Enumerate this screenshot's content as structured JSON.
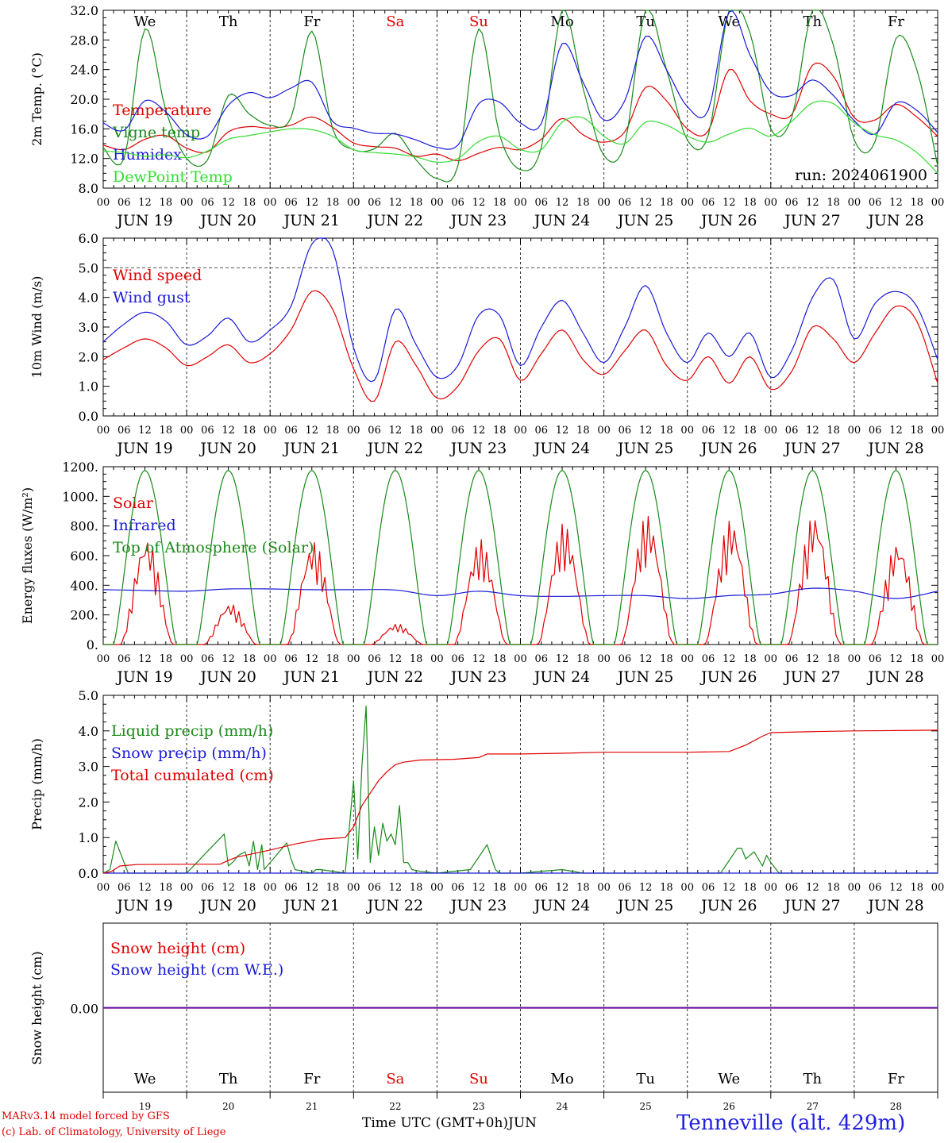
{
  "days": [
    "19",
    "20",
    "21",
    "22",
    "23",
    "24",
    "25",
    "26",
    "27",
    "28"
  ],
  "day_labels": [
    "JUN 19",
    "JUN 20",
    "JUN 21",
    "JUN 22",
    "JUN 23",
    "JUN 24",
    "JUN 25",
    "JUN 26",
    "JUN 27",
    "JUN 28"
  ],
  "weekdays": [
    {
      "label": "We",
      "color": "#000000"
    },
    {
      "label": "Th",
      "color": "#000000"
    },
    {
      "label": "Fr",
      "color": "#000000"
    },
    {
      "label": "Sa",
      "color": "#e00000"
    },
    {
      "label": "Su",
      "color": "#e00000"
    },
    {
      "label": "Mo",
      "color": "#000000"
    },
    {
      "label": "Tu",
      "color": "#000000"
    },
    {
      "label": "We",
      "color": "#000000"
    },
    {
      "label": "Th",
      "color": "#000000"
    },
    {
      "label": "Fr",
      "color": "#000000"
    }
  ],
  "hour_ticks": [
    "00",
    "06",
    "12",
    "18"
  ],
  "colors": {
    "red": "#e00000",
    "green": "#1a8a1a",
    "lightgreen": "#33dd33",
    "blue": "#1a1ad8",
    "purple": "#7a1a9a"
  },
  "footer": {
    "credit1": "MARv3.14 model forced by GFS",
    "credit2": "(c) Lab. of Climatology, University of Liege",
    "xtitle": "Time UTC (GMT+0h)JUN",
    "station": "Tenneville (alt. 429m)"
  },
  "chart_data": [
    {
      "type": "line",
      "ylabel": "2m Temp. (°C)",
      "ylim": [
        8,
        32
      ],
      "yticks": [
        "8.0",
        "12.0",
        "16.0",
        "20.0",
        "24.0",
        "28.0",
        "32.0"
      ],
      "annotation": "run: 2024061900",
      "series": [
        {
          "name": "Temperature",
          "color": "#e00000",
          "x": [
            0,
            0.25,
            0.5,
            0.75,
            1,
            1.25,
            1.5,
            1.75,
            2,
            2.25,
            2.5,
            2.75,
            3,
            3.25,
            3.5,
            3.75,
            4,
            4.25,
            4.5,
            4.75,
            5,
            5.25,
            5.5,
            5.75,
            6,
            6.25,
            6.5,
            6.75,
            7,
            7.25,
            7.5,
            7.75,
            8,
            8.25,
            8.5,
            8.75,
            9,
            9.25,
            9.5,
            9.75,
            10
          ],
          "y": [
            13.8,
            13.2,
            14.6,
            15.1,
            13.4,
            12.9,
            15.6,
            16.3,
            16.1,
            16.5,
            17.6,
            16.2,
            14.1,
            13.6,
            13.4,
            12.3,
            12.6,
            11.7,
            12.7,
            13.5,
            13.2,
            14.6,
            17.4,
            15.2,
            14.2,
            15.6,
            21.6,
            19.8,
            16.0,
            15.7,
            24.0,
            19.8,
            18.0,
            17.9,
            24.6,
            23.1,
            17.5,
            17.2,
            19.3,
            17.6,
            15.0
          ]
        },
        {
          "name": "Vigne temp",
          "color": "#1a8a1a",
          "x": [
            0,
            0.25,
            0.5,
            0.75,
            1,
            1.25,
            1.5,
            1.75,
            2,
            2.25,
            2.5,
            2.75,
            3,
            3.25,
            3.5,
            3.75,
            4,
            4.25,
            4.5,
            4.75,
            5,
            5.25,
            5.5,
            5.75,
            6,
            6.25,
            6.5,
            6.75,
            7,
            7.25,
            7.5,
            7.75,
            8,
            8.25,
            8.5,
            8.75,
            9,
            9.25,
            9.5,
            9.75,
            10
          ],
          "y": [
            13.5,
            12.0,
            29.5,
            18.5,
            12.0,
            11.8,
            20.5,
            18.0,
            16.5,
            17.5,
            29.2,
            16.0,
            13.2,
            13.3,
            15.4,
            11.8,
            9.3,
            11.0,
            29.5,
            15.2,
            10.5,
            13.5,
            32.0,
            21.5,
            12.4,
            14.0,
            32.0,
            24.0,
            14.5,
            15.1,
            32.0,
            29.0,
            16.0,
            17.5,
            32.0,
            27.3,
            14.5,
            14.3,
            28.2,
            24.0,
            11.0
          ]
        },
        {
          "name": "Humidex",
          "color": "#1a1ad8",
          "x": [
            0,
            0.25,
            0.5,
            0.75,
            1,
            1.25,
            1.5,
            1.75,
            2,
            2.25,
            2.5,
            2.75,
            3,
            3.25,
            3.5,
            3.75,
            4,
            4.25,
            4.5,
            4.75,
            5,
            5.25,
            5.5,
            5.75,
            6,
            6.25,
            6.5,
            6.75,
            7,
            7.25,
            7.5,
            7.75,
            8,
            8.25,
            8.5,
            8.75,
            9,
            9.25,
            9.5,
            9.75,
            10
          ],
          "y": [
            16.8,
            15.8,
            19.8,
            18.3,
            15.2,
            15.0,
            19.2,
            20.9,
            20.2,
            21.5,
            22.3,
            17.0,
            16.1,
            15.4,
            15.3,
            14.5,
            13.5,
            13.8,
            19.4,
            19.6,
            16.8,
            16.7,
            27.5,
            22.3,
            17.2,
            19.8,
            28.5,
            24.0,
            19.0,
            18.5,
            31.8,
            26.0,
            21.0,
            20.5,
            22.6,
            20.5,
            17.1,
            15.3,
            19.5,
            18.5,
            15.5
          ]
        },
        {
          "name": "DewPoint Temp",
          "color": "#33dd33",
          "x": [
            0,
            0.25,
            0.5,
            0.75,
            1,
            1.25,
            1.5,
            1.75,
            2,
            2.25,
            2.5,
            2.75,
            3,
            3.25,
            3.5,
            3.75,
            4,
            4.25,
            4.5,
            4.75,
            5,
            5.25,
            5.5,
            5.75,
            6,
            6.25,
            6.5,
            6.75,
            7,
            7.25,
            7.5,
            7.75,
            8,
            8.25,
            8.5,
            8.75,
            9,
            9.25,
            9.5,
            9.75,
            10
          ],
          "y": [
            13.0,
            12.8,
            12.3,
            12.5,
            12.1,
            13.0,
            14.6,
            15.1,
            15.6,
            16.0,
            15.9,
            15.0,
            13.2,
            12.8,
            12.6,
            12.2,
            11.5,
            12.0,
            14.3,
            15.0,
            13.2,
            13.2,
            16.9,
            17.5,
            15.0,
            14.0,
            16.9,
            16.5,
            15.0,
            14.2,
            15.3,
            16.1,
            15.0,
            17.0,
            19.5,
            19.4,
            16.8,
            15.2,
            14.5,
            12.8,
            10.0
          ]
        }
      ]
    },
    {
      "type": "line",
      "ylabel": "10m Wind (m/s)",
      "ylim": [
        0,
        6
      ],
      "yticks": [
        "0.0",
        "1.0",
        "2.0",
        "3.0",
        "4.0",
        "5.0",
        "6.0"
      ],
      "series": [
        {
          "name": "Wind speed",
          "color": "#e00000",
          "x": [
            0,
            0.25,
            0.5,
            0.75,
            1,
            1.25,
            1.5,
            1.75,
            2,
            2.25,
            2.5,
            2.75,
            3,
            3.25,
            3.5,
            3.75,
            4,
            4.25,
            4.5,
            4.75,
            5,
            5.25,
            5.5,
            5.75,
            6,
            6.25,
            6.5,
            6.75,
            7,
            7.25,
            7.5,
            7.75,
            8,
            8.25,
            8.5,
            8.75,
            9,
            9.25,
            9.5,
            9.75,
            10
          ],
          "y": [
            1.9,
            2.3,
            2.6,
            2.3,
            1.7,
            2.0,
            2.4,
            1.8,
            2.1,
            2.9,
            4.2,
            3.6,
            1.6,
            0.5,
            2.5,
            1.7,
            0.6,
            1.0,
            2.2,
            2.6,
            1.2,
            2.1,
            2.9,
            1.9,
            1.4,
            2.2,
            2.9,
            1.7,
            1.2,
            2.0,
            1.1,
            2.0,
            0.9,
            1.5,
            3.0,
            2.6,
            1.8,
            2.8,
            3.7,
            3.2,
            1.1
          ]
        },
        {
          "name": "Wind gust",
          "color": "#1a1ad8",
          "x": [
            0,
            0.25,
            0.5,
            0.75,
            1,
            1.25,
            1.5,
            1.75,
            2,
            2.25,
            2.5,
            2.75,
            3,
            3.25,
            3.5,
            3.75,
            4,
            4.25,
            4.5,
            4.75,
            5,
            5.25,
            5.5,
            5.75,
            6,
            6.25,
            6.5,
            6.75,
            7,
            7.25,
            7.5,
            7.75,
            8,
            8.25,
            8.5,
            8.75,
            9,
            9.25,
            9.5,
            9.75,
            10
          ],
          "y": [
            2.5,
            3.1,
            3.5,
            3.2,
            2.4,
            2.7,
            3.3,
            2.5,
            2.9,
            3.7,
            5.8,
            5.6,
            2.3,
            1.2,
            3.6,
            2.4,
            1.3,
            1.7,
            3.4,
            3.4,
            1.7,
            3.0,
            3.9,
            2.8,
            1.8,
            3.0,
            4.4,
            2.8,
            1.8,
            2.8,
            2.0,
            2.8,
            1.3,
            2.2,
            4.0,
            4.6,
            2.6,
            3.8,
            4.2,
            3.7,
            1.9
          ]
        }
      ]
    },
    {
      "type": "line",
      "ylabel": "Energy fluxes (W/m²)",
      "ylim": [
        0,
        1200
      ],
      "yticks": [
        "0.",
        "200.",
        "400.",
        "600.",
        "800.",
        "1000.",
        "1200."
      ],
      "series": [
        {
          "name": "Solar",
          "color": "#e00000",
          "peaks": [
            730,
            280,
            700,
            140,
            710,
            820,
            880,
            850,
            890,
            700
          ]
        },
        {
          "name": "Infrared",
          "color": "#1a1ad8",
          "x": [
            0,
            0.5,
            1,
            1.5,
            2,
            2.5,
            3,
            3.5,
            4,
            4.5,
            5,
            5.5,
            6,
            6.5,
            7,
            7.5,
            8,
            8.5,
            9,
            9.5,
            10
          ],
          "y": [
            370,
            365,
            360,
            375,
            375,
            370,
            370,
            368,
            330,
            360,
            330,
            325,
            330,
            330,
            310,
            330,
            340,
            380,
            360,
            310,
            360
          ]
        },
        {
          "name": "Top of Atmosphere (Solar)",
          "color": "#1a8a1a",
          "peak": 1175
        }
      ]
    },
    {
      "type": "line",
      "ylabel": "Precip (mm/h)",
      "ylim": [
        0,
        5
      ],
      "yticks": [
        "0.0",
        "1.0",
        "2.0",
        "3.0",
        "4.0",
        "5.0"
      ],
      "series": [
        {
          "name": "Liquid precip (mm/h)",
          "color": "#1a8a1a",
          "x": [
            0,
            0.08,
            0.15,
            0.3,
            1,
            1.45,
            1.5,
            1.55,
            1.62,
            1.7,
            1.75,
            1.8,
            1.85,
            1.9,
            1.93,
            2.2,
            2.25,
            2.3,
            2.5,
            2.5,
            2.55,
            2.6,
            2.9,
            3.0,
            3.05,
            3.1,
            3.15,
            3.2,
            3.25,
            3.3,
            3.35,
            3.4,
            3.45,
            3.5,
            3.55,
            3.6,
            3.65,
            3.7,
            3.8,
            4.0,
            4.4,
            4.6,
            4.7,
            4.75,
            4.8,
            5.0,
            5.5,
            5.75,
            6.0,
            7.4,
            7.6,
            7.65,
            7.7,
            7.8,
            7.9,
            7.95,
            8.0,
            8.1,
            9.0,
            10.0
          ],
          "y": [
            0,
            0.1,
            0.9,
            0,
            0,
            1.1,
            0.2,
            0.3,
            0.5,
            0.6,
            0.2,
            0.9,
            0.1,
            0.8,
            0.1,
            0.85,
            0.4,
            0.1,
            0.0,
            0.0,
            0.1,
            0.1,
            0.0,
            2.6,
            0.4,
            3.0,
            4.7,
            0.3,
            1.3,
            0.5,
            1.4,
            0.9,
            1.1,
            0.8,
            1.9,
            0.3,
            0.3,
            0.1,
            0.05,
            0.0,
            0.1,
            0.8,
            0.1,
            0.0,
            0.0,
            0.0,
            0.1,
            0.0,
            0.0,
            0.0,
            0.7,
            0.7,
            0.4,
            0.6,
            0.2,
            0.5,
            0.3,
            0.0,
            0.0,
            0.0
          ]
        },
        {
          "name": "Snow precip (mm/h)",
          "color": "#1a1ad8",
          "x": [
            0,
            10
          ],
          "y": [
            0,
            0
          ]
        },
        {
          "name": "Total cumulated (cm)",
          "color": "#e00000",
          "x": [
            0,
            0.1,
            0.2,
            0.4,
            1.0,
            1.4,
            1.5,
            1.6,
            1.8,
            2.0,
            2.3,
            2.6,
            2.9,
            3.0,
            3.1,
            3.2,
            3.3,
            3.4,
            3.5,
            3.6,
            3.8,
            4.2,
            4.5,
            4.6,
            5.0,
            5.5,
            6.0,
            7.0,
            7.5,
            7.7,
            7.9,
            8.0,
            8.5,
            9.0,
            10.0
          ],
          "y": [
            0.0,
            0.05,
            0.2,
            0.24,
            0.25,
            0.25,
            0.36,
            0.45,
            0.55,
            0.65,
            0.82,
            0.95,
            1.0,
            1.3,
            1.9,
            2.25,
            2.6,
            2.85,
            3.05,
            3.12,
            3.18,
            3.2,
            3.25,
            3.35,
            3.35,
            3.37,
            3.4,
            3.4,
            3.42,
            3.6,
            3.85,
            3.95,
            3.98,
            4.0,
            4.02
          ]
        }
      ]
    },
    {
      "type": "line",
      "ylabel": "Snow height (cm)",
      "yticks": [
        "0.00"
      ],
      "series": [
        {
          "name": "Snow height (cm)",
          "color": "#e00000",
          "x": [
            0,
            10
          ],
          "y": [
            0,
            0
          ]
        },
        {
          "name": "Snow height (cm W.E.)",
          "color": "#1a1ad8",
          "x": [
            0,
            10
          ],
          "y": [
            0,
            0
          ]
        }
      ]
    }
  ]
}
